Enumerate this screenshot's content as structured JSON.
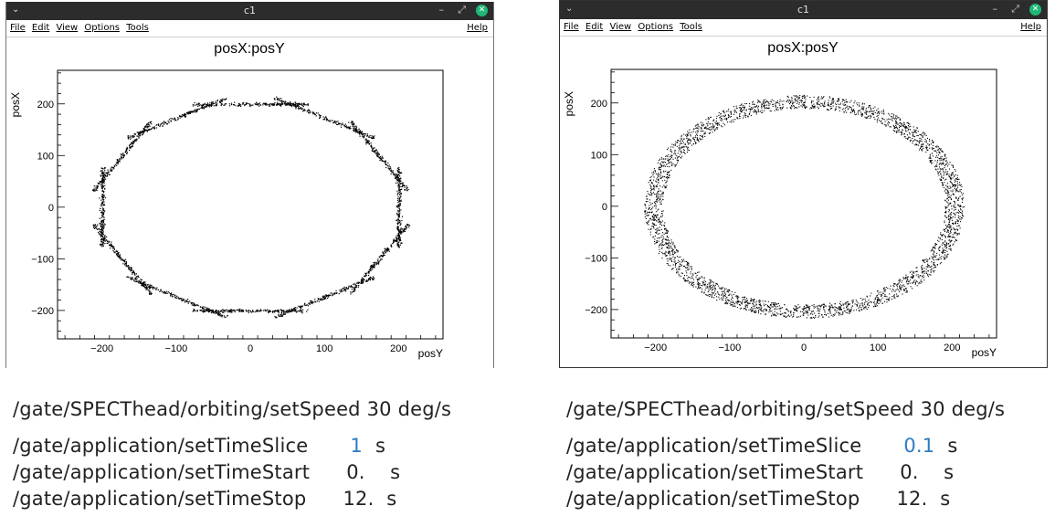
{
  "windows": [
    {
      "title": "c1",
      "menu": [
        "File",
        "Edit",
        "View",
        "Options",
        "Tools"
      ],
      "help": "Help",
      "plot": {
        "title": "posX:posY",
        "xlabel": "posY",
        "ylabel": "posX",
        "xticks": [
          "−200",
          "−100",
          "0",
          "100",
          "200"
        ],
        "yticks": [
          "200",
          "100",
          "0",
          "−100",
          "−200"
        ]
      }
    },
    {
      "title": "c1",
      "menu": [
        "File",
        "Edit",
        "View",
        "Options",
        "Tools"
      ],
      "help": "Help",
      "plot": {
        "title": "posX:posY",
        "xlabel": "posY",
        "ylabel": "posX",
        "xticks": [
          "−200",
          "−100",
          "0",
          "100",
          "200"
        ],
        "yticks": [
          "200",
          "100",
          "0",
          "−100",
          "−200"
        ]
      }
    }
  ],
  "chart_data": [
    {
      "type": "scatter",
      "title": "posX:posY",
      "xlabel": "posY",
      "ylabel": "posX",
      "xlim": [
        -260,
        260
      ],
      "ylim": [
        -255,
        265
      ],
      "pattern": "12-sided polygon of line-segment projections, radius ~200, 12 slices (1 s each)"
    },
    {
      "type": "scatter",
      "title": "posX:posY",
      "xlabel": "posY",
      "ylabel": "posX",
      "xlim": [
        -260,
        260
      ],
      "ylim": [
        -255,
        265
      ],
      "pattern": "continuous ring, inner radius ~190, outer radius ~215"
    }
  ],
  "captions": [
    {
      "speed": "/gate/SPECThead/orbiting/setSpeed 30 deg/s",
      "slice_cmd": "/gate/application/setTimeSlice",
      "slice_val": "1",
      "slice_unit": "s",
      "start_cmd": "/gate/application/setTimeStart",
      "start_val": "0.    s",
      "stop_cmd": "/gate/application/setTimeStop",
      "stop_val": "12.  s"
    },
    {
      "speed": "/gate/SPECThead/orbiting/setSpeed 30 deg/s",
      "slice_cmd": "/gate/application/setTimeSlice",
      "slice_val": "0.1",
      "slice_unit": "s",
      "start_cmd": "/gate/application/setTimeStart",
      "start_val": "0.    s",
      "stop_cmd": "/gate/application/setTimeStop",
      "stop_val": "12.  s"
    }
  ],
  "colors": {
    "titlebar": "#2c2c2c",
    "close": "#1fb876",
    "accent_value": "#2e7bbf",
    "points": "#000000"
  }
}
